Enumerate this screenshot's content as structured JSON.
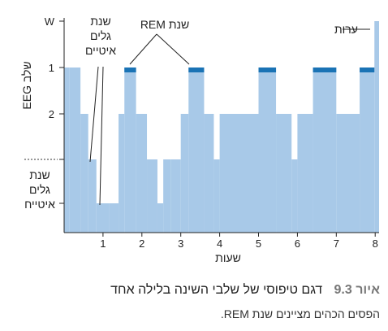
{
  "chart_data": {
    "type": "area",
    "title": "",
    "xlabel": "שעות",
    "ylabel": "שלב EEG",
    "xlim": [
      0,
      8.1
    ],
    "x_ticks": [
      "1",
      "2",
      "3",
      "4",
      "5",
      "6",
      "7",
      "8"
    ],
    "x_tick_values": [
      1,
      2,
      3,
      4,
      5,
      6,
      7,
      8
    ],
    "y_levels": [
      {
        "key": "W",
        "label": "W",
        "depth": 0
      },
      {
        "key": "1",
        "label": "1",
        "depth": 1
      },
      {
        "key": "2",
        "label": "2",
        "depth": 2
      },
      {
        "key": "3",
        "label": "",
        "depth": 3
      },
      {
        "key": "4",
        "label": "",
        "depth": 4
      }
    ],
    "hypnogram": [
      {
        "t0": 0.0,
        "t1": 0.13,
        "stage": "1"
      },
      {
        "t0": 0.13,
        "t1": 0.42,
        "stage": "1"
      },
      {
        "t0": 0.42,
        "t1": 0.62,
        "stage": "2"
      },
      {
        "t0": 0.62,
        "t1": 0.83,
        "stage": "3"
      },
      {
        "t0": 0.83,
        "t1": 1.15,
        "stage": "4"
      },
      {
        "t0": 1.15,
        "t1": 1.4,
        "stage": "4"
      },
      {
        "t0": 1.4,
        "t1": 1.55,
        "stage": "2"
      },
      {
        "t0": 1.55,
        "t1": 1.85,
        "stage": "1",
        "rem": true
      },
      {
        "t0": 1.85,
        "t1": 2.13,
        "stage": "2"
      },
      {
        "t0": 2.13,
        "t1": 2.4,
        "stage": "3"
      },
      {
        "t0": 2.4,
        "t1": 2.55,
        "stage": "4"
      },
      {
        "t0": 2.55,
        "t1": 2.75,
        "stage": "3"
      },
      {
        "t0": 2.75,
        "t1": 3.0,
        "stage": "3"
      },
      {
        "t0": 3.0,
        "t1": 3.2,
        "stage": "2"
      },
      {
        "t0": 3.2,
        "t1": 3.6,
        "stage": "1",
        "rem": true
      },
      {
        "t0": 3.6,
        "t1": 3.85,
        "stage": "2"
      },
      {
        "t0": 3.85,
        "t1": 4.0,
        "stage": "3"
      },
      {
        "t0": 4.0,
        "t1": 5.0,
        "stage": "2"
      },
      {
        "t0": 5.0,
        "t1": 5.45,
        "stage": "1",
        "rem": true
      },
      {
        "t0": 5.45,
        "t1": 5.85,
        "stage": "2"
      },
      {
        "t0": 5.85,
        "t1": 6.0,
        "stage": "3"
      },
      {
        "t0": 6.0,
        "t1": 6.4,
        "stage": "2"
      },
      {
        "t0": 6.4,
        "t1": 7.0,
        "stage": "1",
        "rem": true
      },
      {
        "t0": 7.0,
        "t1": 7.6,
        "stage": "2"
      },
      {
        "t0": 7.6,
        "t1": 7.98,
        "stage": "1",
        "rem": true
      },
      {
        "t0": 7.98,
        "t1": 8.1,
        "stage": "W"
      }
    ],
    "annotations": {
      "rem": "שנת REM",
      "wake": "ערות",
      "sws_top": [
        "שנת",
        "גלים",
        "איטיים"
      ],
      "sws_left": [
        "שנת",
        "גלים",
        "איטייח"
      ]
    },
    "colors": {
      "fill": "#a8c9e8",
      "rem": "#1a73b5",
      "axis": "#222222"
    }
  },
  "caption": {
    "figure_number": "איור 9.3",
    "title": "דגם טיפוסי של שלבי השינה בלילה אחד",
    "note": "הפסים הכהים מציינים שנת REM."
  }
}
